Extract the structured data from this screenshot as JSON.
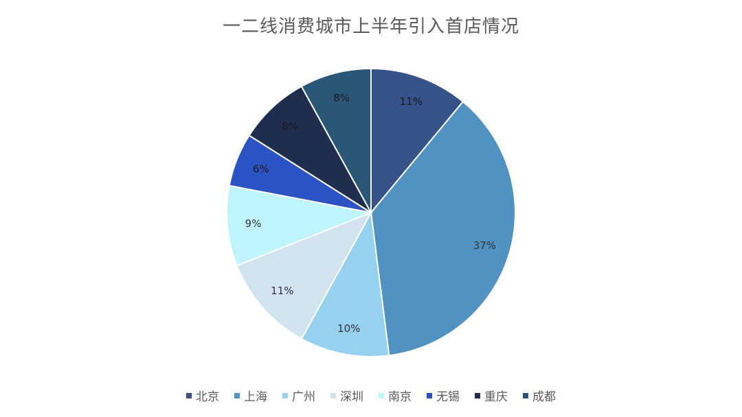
{
  "chart_data": {
    "type": "pie",
    "title": "一二线消费城市上半年引入首店情况",
    "legend_position": "bottom",
    "slices": [
      {
        "name": "北京",
        "value": 11,
        "label": "11%",
        "color": "#355289"
      },
      {
        "name": "上海",
        "value": 37,
        "label": "37%",
        "color": "#5093C2"
      },
      {
        "name": "广州",
        "value": 10,
        "label": "10%",
        "color": "#96D2F0"
      },
      {
        "name": "深圳",
        "value": 11,
        "label": "11%",
        "color": "#D1E3EF"
      },
      {
        "name": "南京",
        "value": 9,
        "label": "9%",
        "color": "#BDF4FD"
      },
      {
        "name": "无锡",
        "value": 6,
        "label": "6%",
        "color": "#2B53C4"
      },
      {
        "name": "重庆",
        "value": 8,
        "label": "8%",
        "color": "#1F2E4E"
      },
      {
        "name": "成都",
        "value": 8,
        "label": "8%",
        "color": "#2A5777"
      }
    ]
  }
}
